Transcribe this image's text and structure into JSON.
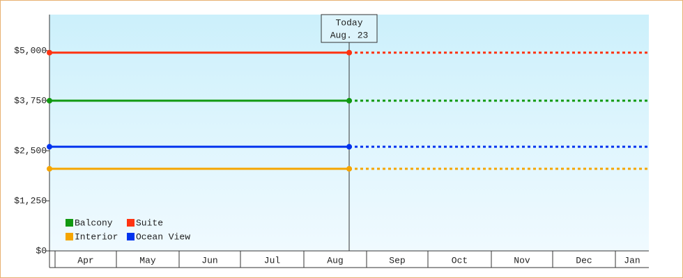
{
  "chart_data": {
    "type": "line",
    "categories": [
      "Apr",
      "May",
      "Jun",
      "Jul",
      "Aug",
      "Sep",
      "Oct",
      "Nov",
      "Dec",
      "Jan"
    ],
    "series": [
      {
        "name": "Balcony",
        "color": "#119911",
        "value": 3750
      },
      {
        "name": "Suite",
        "color": "#ff3311",
        "value": 4950
      },
      {
        "name": "Interior",
        "color": "#f5a500",
        "value": 2050
      },
      {
        "name": "Ocean View",
        "color": "#0033ee",
        "value": 2600
      }
    ],
    "today_label": [
      "Today",
      "Aug. 23"
    ],
    "ylim": [
      0,
      5900
    ],
    "yticks": [
      {
        "value": 0,
        "label": "$0"
      },
      {
        "value": 1250,
        "label": "$1,250"
      },
      {
        "value": 2500,
        "label": "$2,500"
      },
      {
        "value": 3750,
        "label": "$3,750"
      },
      {
        "value": 5000,
        "label": "$5,000"
      }
    ]
  }
}
